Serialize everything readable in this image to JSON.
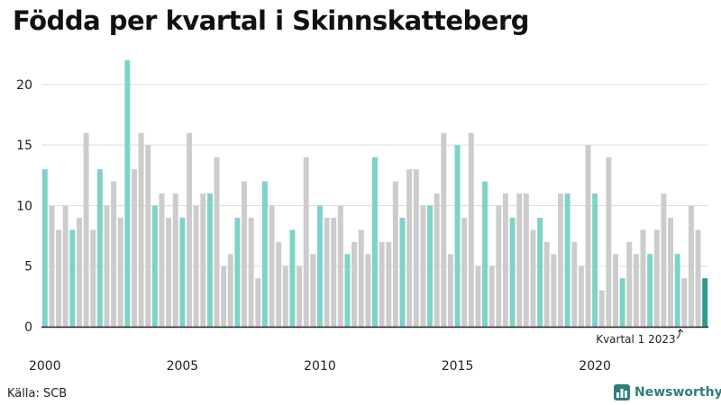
{
  "title": "Födda per kvartal i Skinnskatteberg",
  "source": "Källa: SCB",
  "brand": {
    "name": "Newsworthy",
    "icon": "bar-chart-logo-icon"
  },
  "colors": {
    "q1": "#7ed3c9",
    "other": "#cccccc",
    "latest": "#2a9d8f",
    "grid": "#dddddd",
    "axis": "#222222",
    "brand": "#2f7f76"
  },
  "chart_data": {
    "type": "bar",
    "ylim": [
      0,
      22
    ],
    "yticks": [
      0,
      5,
      10,
      15,
      20
    ],
    "xtick_labels": [
      "2000",
      "2005",
      "2010",
      "2015",
      "2020"
    ],
    "grid": true,
    "annotation": "Kvartal 1 2023",
    "series": [
      {
        "values": [
          13,
          10,
          8,
          10,
          8,
          9,
          16,
          8,
          13,
          10,
          12,
          9,
          22,
          13,
          16,
          15,
          10,
          11,
          9,
          11,
          9,
          16,
          10,
          11,
          11,
          14,
          5,
          6,
          9,
          12,
          9,
          4,
          12,
          10,
          7,
          5,
          8,
          5,
          14,
          6,
          10,
          9,
          9,
          10,
          6,
          7,
          8,
          6,
          14,
          7,
          7,
          12,
          9,
          13,
          13,
          10,
          10,
          11,
          16,
          6,
          15,
          9,
          16,
          5,
          12,
          5,
          10,
          11,
          9,
          11,
          11,
          8,
          9,
          7,
          6,
          11,
          11,
          7,
          5,
          15,
          11,
          3,
          14,
          6,
          4,
          7,
          6,
          8,
          6,
          8,
          11,
          9,
          6,
          4,
          10,
          8,
          4
        ]
      }
    ]
  }
}
